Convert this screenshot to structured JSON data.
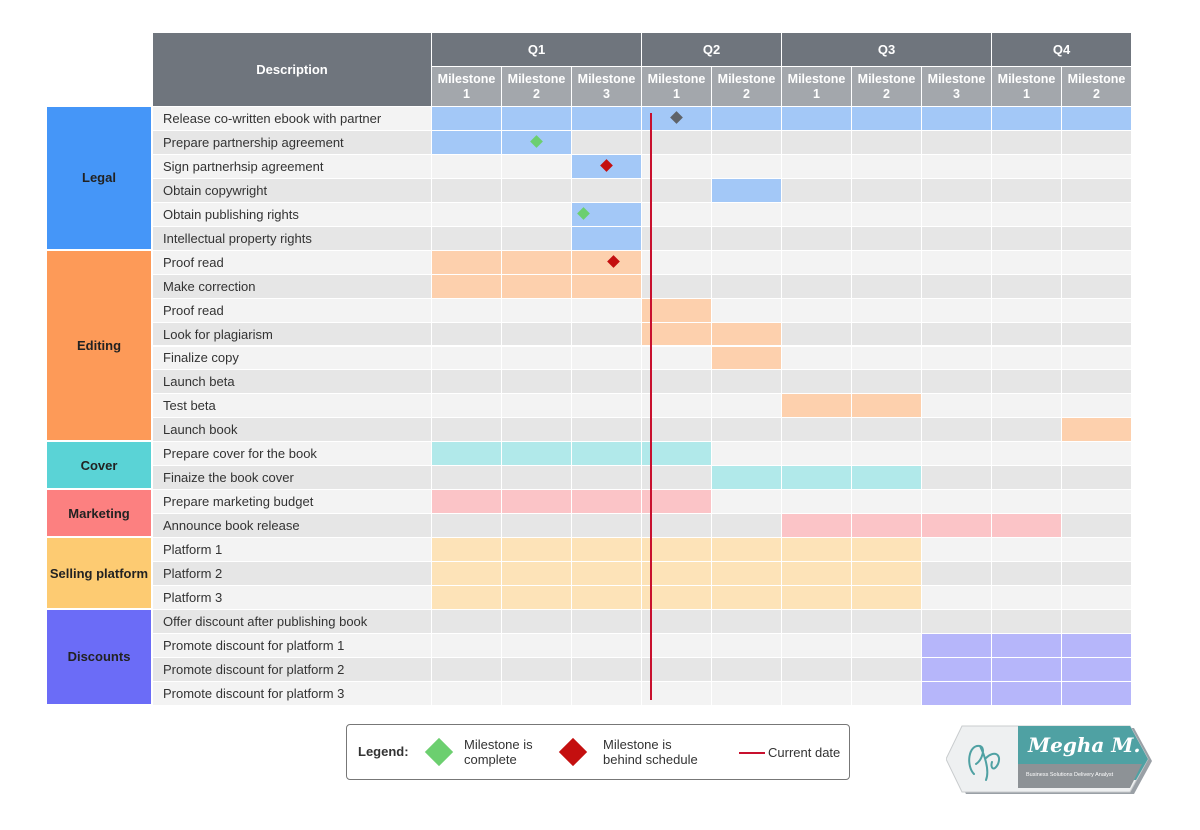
{
  "header": {
    "description": "Description",
    "quarters": [
      {
        "label": "Q1",
        "milestones": [
          [
            "Milestone",
            "1"
          ],
          [
            "Milestone",
            "2"
          ],
          [
            "Milestone",
            "3"
          ]
        ]
      },
      {
        "label": "Q2",
        "milestones": [
          [
            "Milestone",
            "1"
          ],
          [
            "Milestone",
            "2"
          ]
        ]
      },
      {
        "label": "Q3",
        "milestones": [
          [
            "Milestone",
            "1"
          ],
          [
            "Milestone",
            "2"
          ],
          [
            "Milestone",
            "3"
          ]
        ]
      },
      {
        "label": "Q4",
        "milestones": [
          [
            "Milestone",
            "1"
          ],
          [
            "Milestone",
            "2"
          ]
        ]
      }
    ]
  },
  "categories": [
    {
      "label": "Legal",
      "color": "#4596f8",
      "bar_color": "#a3c8f7",
      "rows": [
        0,
        5
      ]
    },
    {
      "label": "Editing",
      "color": "#fd9a58",
      "bar_color": "#fdd0ad",
      "rows": [
        6,
        13
      ]
    },
    {
      "label": "Cover",
      "color": "#5ad3d6",
      "bar_color": "#b1e9ea",
      "rows": [
        14,
        15
      ]
    },
    {
      "label": "Marketing",
      "color": "#fc8080",
      "bar_color": "#fbc4c7",
      "rows": [
        16,
        17
      ]
    },
    {
      "label": "Selling platform",
      "color": "#fdcb72",
      "bar_color": "#fde3b8",
      "rows": [
        18,
        20
      ]
    },
    {
      "label": "Discounts",
      "color": "#6b6cf7",
      "bar_color": "#b6b6fa",
      "rows": [
        21,
        24
      ]
    }
  ],
  "tasks": [
    {
      "label": "Release co-written ebook with partner",
      "category": 0,
      "bar": [
        0,
        9
      ],
      "milestone": {
        "col": 3,
        "status": "current"
      }
    },
    {
      "label": "Prepare partnership agreement",
      "category": 0,
      "bar": [
        0,
        1
      ],
      "milestone": {
        "col": 1,
        "status": "complete"
      }
    },
    {
      "label": "Sign partnerhsip agreement",
      "category": 0,
      "bar": [
        2,
        2
      ],
      "milestone": {
        "col": 2,
        "status": "behind"
      }
    },
    {
      "label": "Obtain copywright",
      "category": 0,
      "bar": [
        4,
        4
      ]
    },
    {
      "label": "Obtain publishing rights",
      "category": 0,
      "bar": [
        2,
        2
      ],
      "milestone": {
        "col": 2,
        "status": "complete",
        "pos": "left"
      }
    },
    {
      "label": "Intellectual property rights",
      "category": 0,
      "bar": [
        2,
        2
      ]
    },
    {
      "label": "Proof read",
      "category": 1,
      "bar": [
        0,
        2
      ],
      "milestone": {
        "col": 2,
        "status": "behind",
        "pos": "right"
      }
    },
    {
      "label": "Make correction",
      "category": 1,
      "bar": [
        0,
        2
      ]
    },
    {
      "label": "Proof read",
      "category": 1,
      "bar": [
        3,
        3
      ]
    },
    {
      "label": "Look for plagiarism",
      "category": 1,
      "bar": [
        3,
        4
      ]
    },
    {
      "label": "Finalize copy",
      "category": 1,
      "bar": [
        4,
        4
      ]
    },
    {
      "label": "Launch beta",
      "category": 1,
      "bar": null
    },
    {
      "label": "Test beta",
      "category": 1,
      "bar": [
        5,
        6
      ]
    },
    {
      "label": "Launch book",
      "category": 1,
      "bar": [
        9,
        9
      ]
    },
    {
      "label": "Prepare cover for the book",
      "category": 2,
      "bar": [
        0,
        3
      ]
    },
    {
      "label": "Finaize the book cover",
      "category": 2,
      "bar": [
        4,
        6
      ]
    },
    {
      "label": "Prepare marketing budget",
      "category": 3,
      "bar": [
        0,
        3
      ]
    },
    {
      "label": "Announce book release",
      "category": 3,
      "bar": [
        5,
        8
      ]
    },
    {
      "label": "Platform 1",
      "category": 4,
      "bar": [
        0,
        6
      ]
    },
    {
      "label": "Platform 2",
      "category": 4,
      "bar": [
        0,
        6
      ]
    },
    {
      "label": "Platform 3",
      "category": 4,
      "bar": [
        0,
        6
      ]
    },
    {
      "label": "Offer discount after publishing book",
      "category": 5,
      "bar": null
    },
    {
      "label": "Promote discount for platform 1",
      "category": 5,
      "bar": [
        7,
        9
      ]
    },
    {
      "label": "Promote discount for platform 2",
      "category": 5,
      "bar": [
        7,
        9
      ]
    },
    {
      "label": "Promote discount for platform 3",
      "category": 5,
      "bar": [
        7,
        9
      ]
    }
  ],
  "milestone_colors": {
    "complete": "#6ccf6f",
    "behind": "#c40f0f",
    "current": "#5f6368"
  },
  "current_date_color": "#c8102e",
  "legend": {
    "title": "Legend:",
    "complete_text": [
      "Milestone is",
      "complete"
    ],
    "behind_text": [
      "Milestone is",
      "behind schedule"
    ],
    "current_text": "Current date"
  },
  "logo": {
    "name": "Megha M.",
    "tagline": "Business Solutions Delivery Analyst"
  }
}
